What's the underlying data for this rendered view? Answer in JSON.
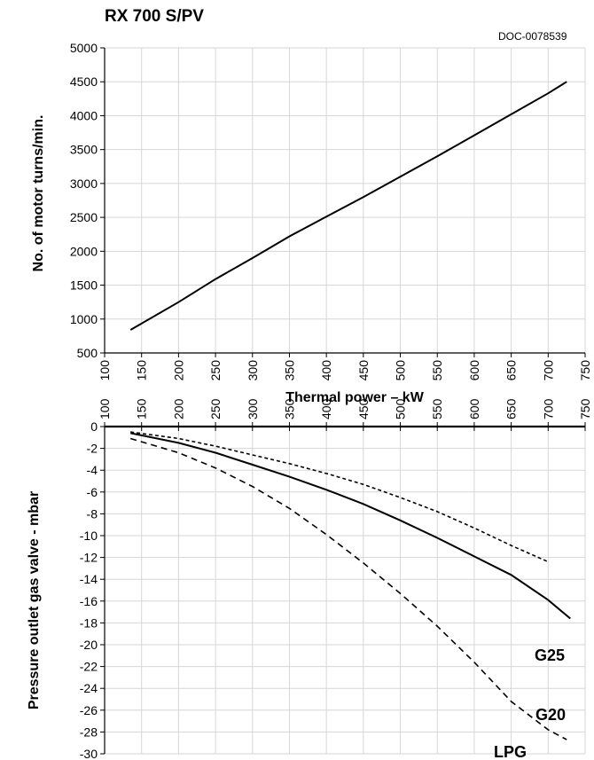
{
  "header": {
    "title": "RX 700 S/PV",
    "doc_code": "DOC-0078539"
  },
  "chart_data": [
    {
      "type": "line",
      "xlabel": "Thermal power – kW",
      "ylabel": "No. of motor turns/min.",
      "xlim": [
        100,
        750
      ],
      "ylim": [
        500,
        5000
      ],
      "xticks": [
        100,
        150,
        200,
        250,
        300,
        350,
        400,
        450,
        500,
        550,
        600,
        650,
        700,
        750
      ],
      "yticks": [
        500,
        1000,
        1500,
        2000,
        2500,
        3000,
        3500,
        4000,
        4500,
        5000
      ],
      "grid": true,
      "series": [
        {
          "style": "solid",
          "x": [
            135,
            200,
            250,
            300,
            350,
            400,
            450,
            500,
            550,
            600,
            650,
            700,
            725
          ],
          "y": [
            840,
            1250,
            1590,
            1900,
            2220,
            2510,
            2800,
            3100,
            3400,
            3710,
            4020,
            4330,
            4500
          ]
        }
      ]
    },
    {
      "type": "line",
      "xlabel": "",
      "ylabel": "Pressure outlet gas valve - mbar",
      "xlim": [
        100,
        750
      ],
      "ylim": [
        -30,
        0
      ],
      "xticks": [
        100,
        150,
        200,
        250,
        300,
        350,
        400,
        450,
        500,
        550,
        600,
        650,
        700,
        750
      ],
      "yticks": [
        0,
        -2,
        -4,
        -6,
        -8,
        -10,
        -12,
        -14,
        -16,
        -18,
        -20,
        -22,
        -24,
        -26,
        -28,
        -30
      ],
      "x_axis_position": "top",
      "grid": true,
      "series": [
        {
          "name": "G25",
          "style": "dotted",
          "x": [
            135,
            200,
            250,
            300,
            350,
            400,
            450,
            500,
            550,
            600,
            650,
            700
          ],
          "y": [
            -0.5,
            -1.1,
            -1.8,
            -2.6,
            -3.4,
            -4.3,
            -5.3,
            -6.5,
            -7.8,
            -9.3,
            -10.9,
            -12.4
          ]
        },
        {
          "name": "G20",
          "style": "solid",
          "x": [
            135,
            200,
            250,
            300,
            350,
            400,
            450,
            500,
            550,
            600,
            650,
            700,
            730
          ],
          "y": [
            -0.6,
            -1.5,
            -2.4,
            -3.5,
            -4.6,
            -5.8,
            -7.1,
            -8.6,
            -10.2,
            -11.9,
            -13.6,
            -15.9,
            -17.6
          ]
        },
        {
          "name": "LPG",
          "style": "dashed",
          "x": [
            135,
            200,
            250,
            300,
            350,
            400,
            450,
            500,
            550,
            600,
            650,
            700,
            725
          ],
          "y": [
            -1.1,
            -2.4,
            -3.8,
            -5.5,
            -7.5,
            -9.9,
            -12.5,
            -15.3,
            -18.3,
            -21.6,
            -25.2,
            -27.8,
            -28.7
          ]
        }
      ]
    }
  ]
}
